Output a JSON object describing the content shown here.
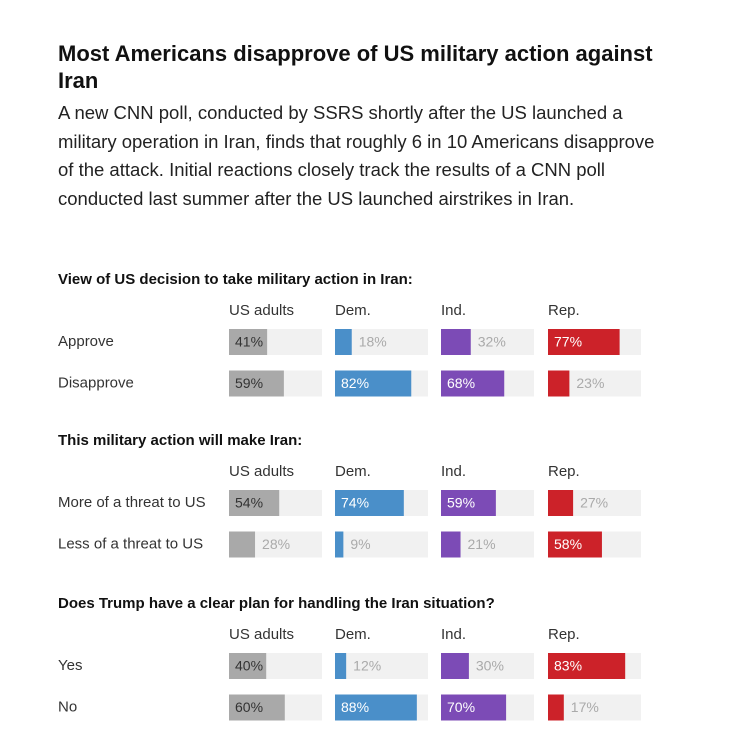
{
  "title": "Most Americans disapprove of US military action against Iran",
  "subtitle": "A new CNN poll, conducted by SSRS shortly after the US launched a military operation in Iran, finds that roughly 6 in 10 Americans disapprove of the attack. Initial reactions closely track the results of a CNN poll conducted last summer after the US launched airstrikes in Iran.",
  "chart_data": [
    {
      "type": "bar",
      "title": "View of US decision to take military action in Iran:",
      "categories": [
        "Approve",
        "Disapprove"
      ],
      "xlim": [
        0,
        100
      ],
      "series": [
        {
          "name": "US adults",
          "color": "#a9a9a9",
          "values": [
            41,
            59
          ],
          "value_labels": [
            "41%",
            "59%"
          ]
        },
        {
          "name": "Dem.",
          "color": "#4a8fc9",
          "values": [
            18,
            82
          ],
          "value_labels": [
            "18%",
            "82%"
          ]
        },
        {
          "name": "Ind.",
          "color": "#7c4bb6",
          "values": [
            32,
            68
          ],
          "value_labels": [
            "32%",
            "68%"
          ]
        },
        {
          "name": "Rep.",
          "color": "#cc2229",
          "values": [
            77,
            23
          ],
          "value_labels": [
            "77%",
            "23%"
          ]
        }
      ]
    },
    {
      "type": "bar",
      "title": "This military action will make Iran:",
      "categories": [
        "More of a threat to US",
        "Less of a threat to US"
      ],
      "xlim": [
        0,
        100
      ],
      "series": [
        {
          "name": "US adults",
          "color": "#a9a9a9",
          "values": [
            54,
            28
          ],
          "value_labels": [
            "54%",
            "28%"
          ]
        },
        {
          "name": "Dem.",
          "color": "#4a8fc9",
          "values": [
            74,
            9
          ],
          "value_labels": [
            "74%",
            "9%"
          ]
        },
        {
          "name": "Ind.",
          "color": "#7c4bb6",
          "values": [
            59,
            21
          ],
          "value_labels": [
            "59%",
            "21%"
          ]
        },
        {
          "name": "Rep.",
          "color": "#cc2229",
          "values": [
            27,
            58
          ],
          "value_labels": [
            "27%",
            "58%"
          ]
        }
      ]
    },
    {
      "type": "bar",
      "title": "Does Trump have a clear plan for handling the Iran situation?",
      "categories": [
        "Yes",
        "No"
      ],
      "xlim": [
        0,
        100
      ],
      "series": [
        {
          "name": "US adults",
          "color": "#a9a9a9",
          "values": [
            40,
            60
          ],
          "value_labels": [
            "40%",
            "60%"
          ]
        },
        {
          "name": "Dem.",
          "color": "#4a8fc9",
          "values": [
            12,
            88
          ],
          "value_labels": [
            "12%",
            "88%"
          ]
        },
        {
          "name": "Ind.",
          "color": "#7c4bb6",
          "values": [
            30,
            70
          ],
          "value_labels": [
            "30%",
            "70%"
          ]
        },
        {
          "name": "Rep.",
          "color": "#cc2229",
          "values": [
            83,
            17
          ],
          "value_labels": [
            "83%",
            "17%"
          ]
        }
      ]
    }
  ]
}
